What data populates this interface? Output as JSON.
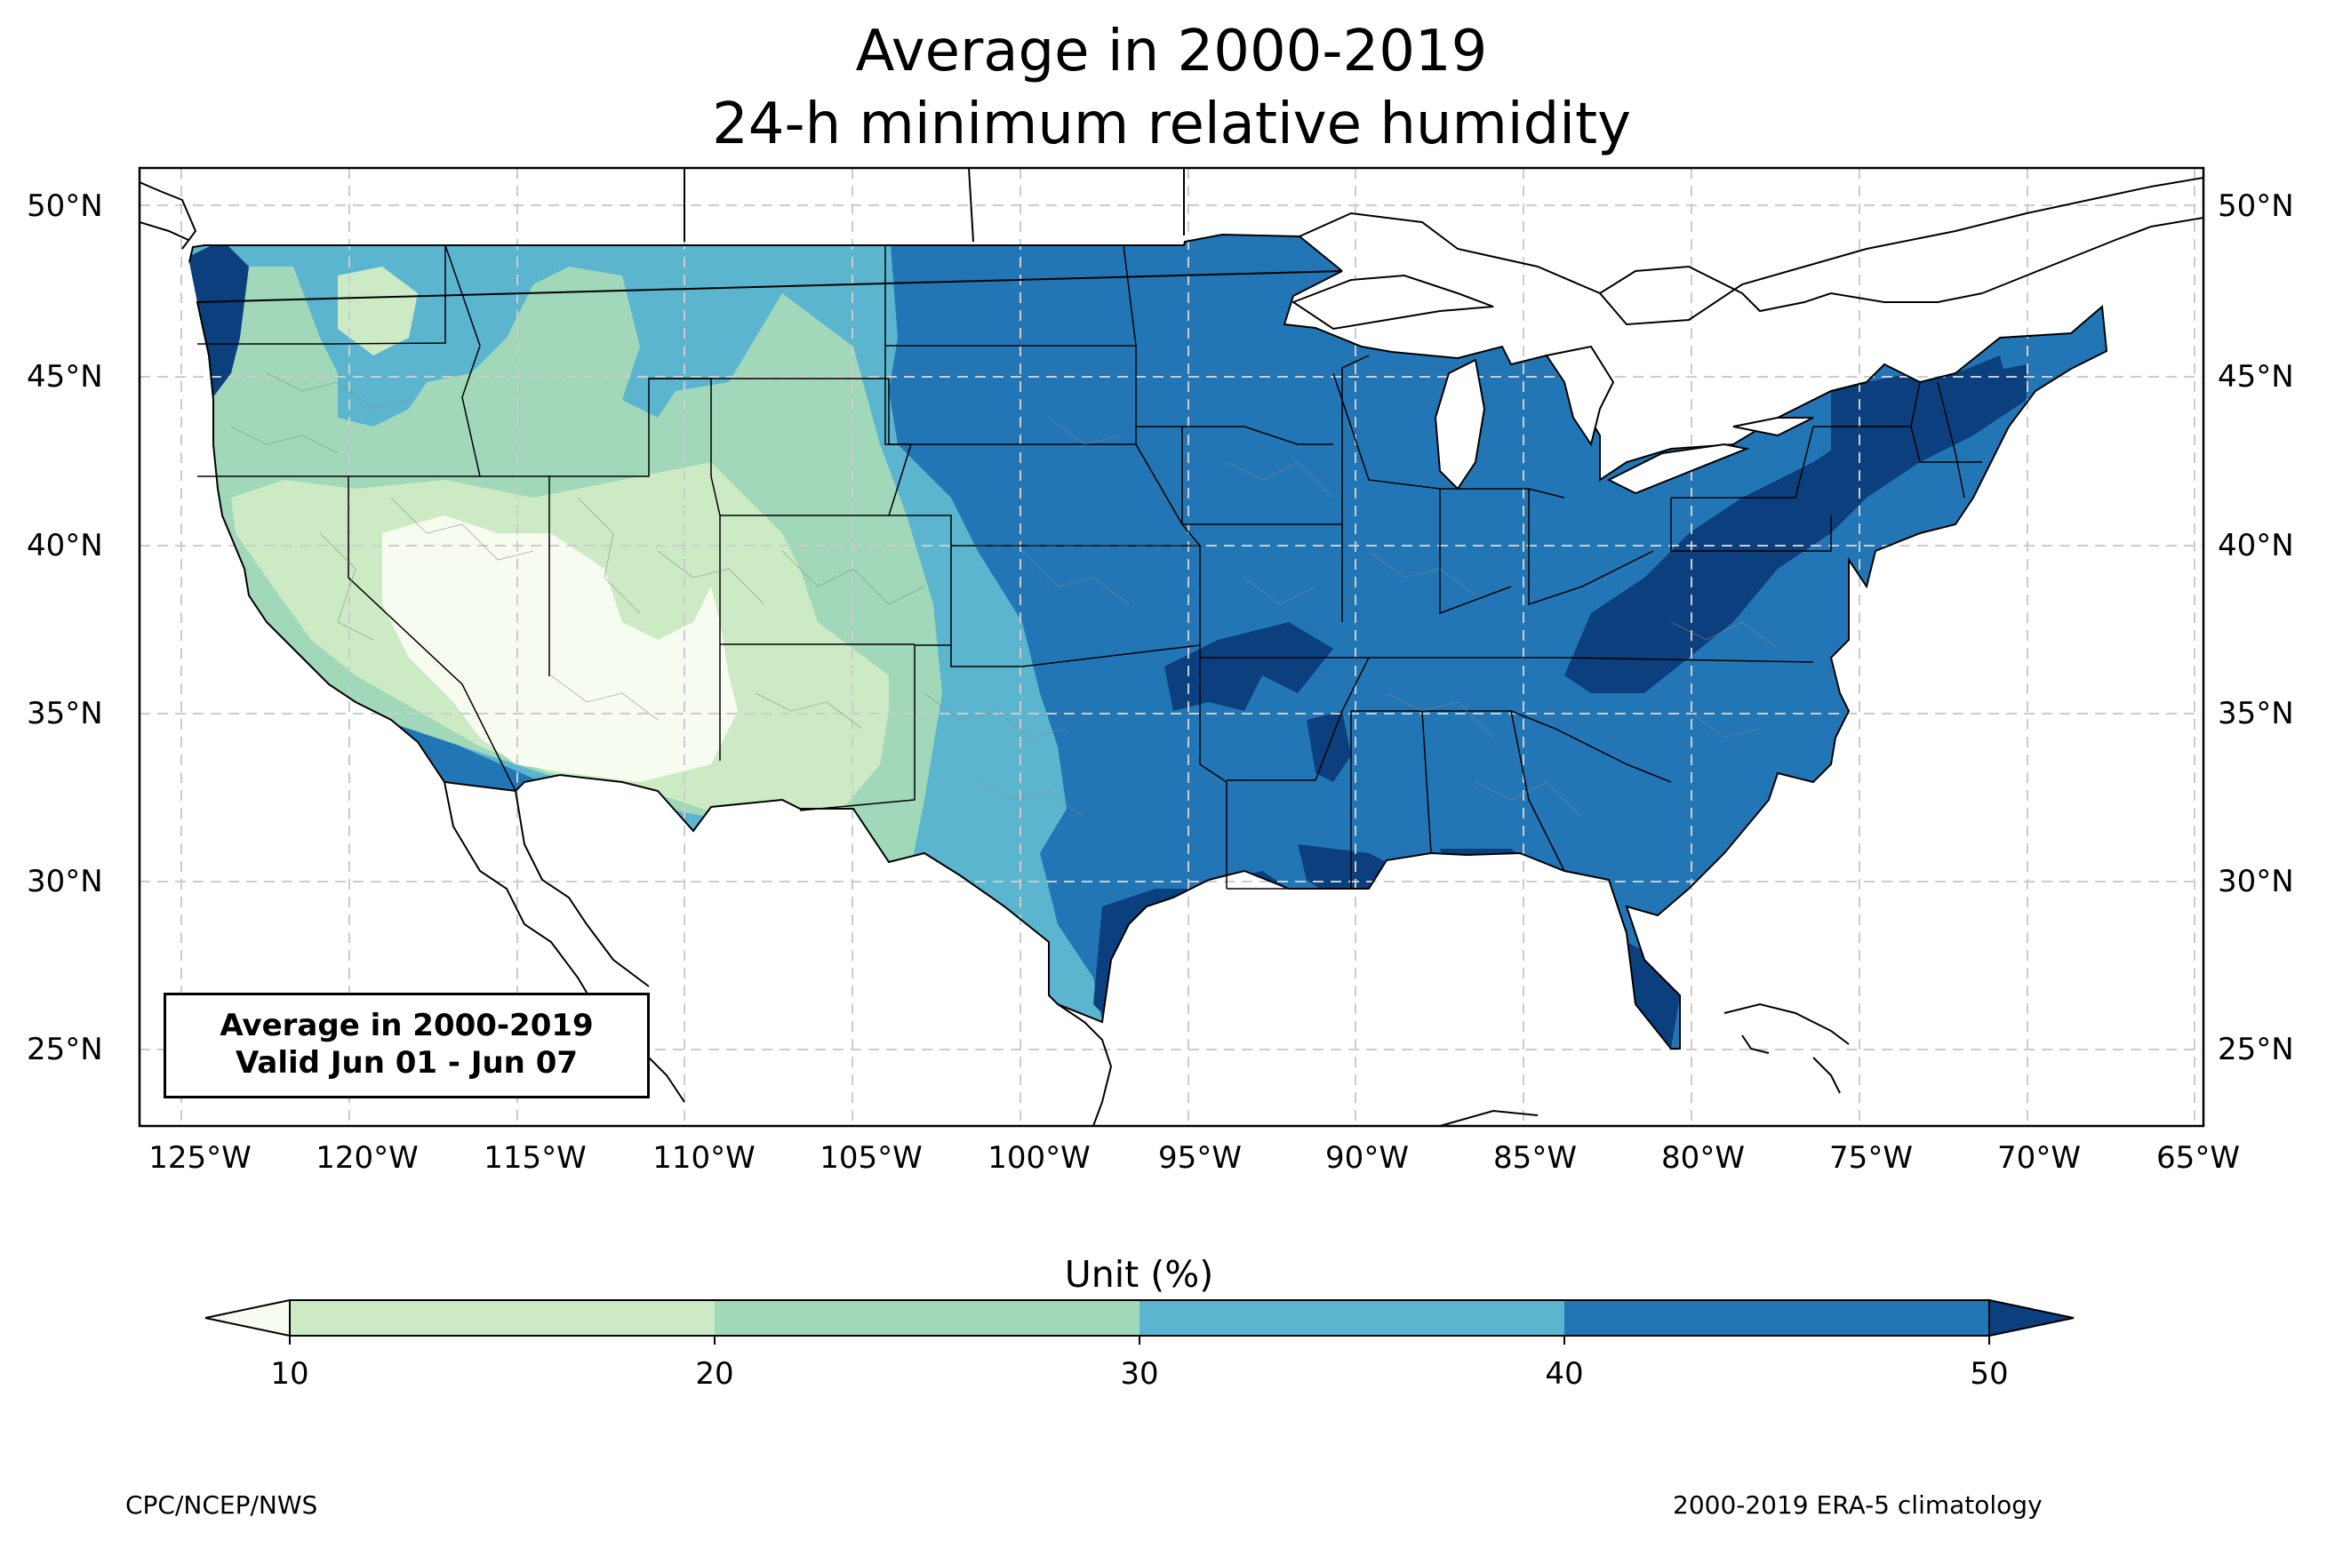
{
  "title": {
    "line1": "Average in 2000-2019",
    "line2": "24-h minimum relative humidity"
  },
  "lat_ticks": [
    "50°N",
    "45°N",
    "40°N",
    "35°N",
    "30°N",
    "25°N"
  ],
  "lon_ticks": [
    "125°W",
    "120°W",
    "115°W",
    "110°W",
    "105°W",
    "100°W",
    "95°W",
    "90°W",
    "85°W",
    "80°W",
    "75°W",
    "70°W",
    "65°W"
  ],
  "infobox": {
    "line1": "Average in 2000-2019",
    "line2": "Valid Jun 01 - Jun 07"
  },
  "colorbar": {
    "label": "Unit (%)",
    "ticks": [
      "10",
      "20",
      "30",
      "40",
      "50"
    ],
    "colors": {
      "below_10": "#f7fcf0",
      "r10_20": "#ccebc5",
      "r20_30": "#a0d8b9",
      "r30_40": "#5bb5cf",
      "r40_50": "#2376b6",
      "above_50": "#0c3f7d"
    }
  },
  "footer": {
    "left": "CPC/NCEP/NWS",
    "right": "2000-2019 ERA-5 climatology"
  }
}
